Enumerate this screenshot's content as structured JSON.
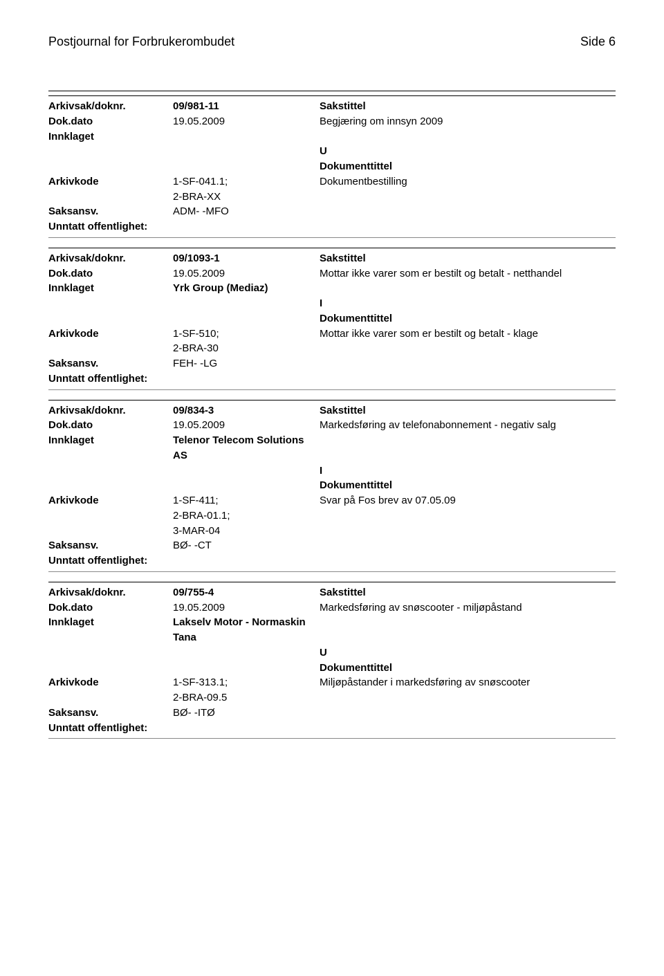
{
  "header": {
    "title": "Postjournal for Forbrukerombudet",
    "page": "Side 6"
  },
  "records": [
    {
      "arkivsak": "09/981-11",
      "dokdato": "19.05.2009",
      "sakstittel": "Begjæring om innsyn 2009",
      "innklaget": "",
      "doktype": "U",
      "arkivkode": [
        "1-SF-041.1;",
        "2-BRA-XX"
      ],
      "dokumenttekst": "Dokumentbestilling",
      "saksansv": "ADM- -MFO",
      "unntatt": ""
    },
    {
      "arkivsak": "09/1093-1",
      "dokdato": "19.05.2009",
      "sakstittel": "Mottar ikke varer som er bestilt og betalt - netthandel",
      "innklaget": "Yrk Group (Mediaz)",
      "doktype": "I",
      "arkivkode": [
        "1-SF-510;",
        "2-BRA-30"
      ],
      "dokumenttekst": "Mottar ikke varer som er bestilt og betalt  - klage",
      "saksansv": "FEH- -LG",
      "unntatt": ""
    },
    {
      "arkivsak": "09/834-3",
      "dokdato": "19.05.2009",
      "sakstittel": "Markedsføring av telefonabonnement - negativ salg",
      "innklaget": "Telenor Telecom Solutions AS",
      "doktype": "I",
      "arkivkode": [
        "1-SF-411;",
        "2-BRA-01.1;",
        "3-MAR-04"
      ],
      "dokumenttekst": "Svar på Fos brev av 07.05.09",
      "saksansv": "BØ- -CT",
      "unntatt": ""
    },
    {
      "arkivsak": "09/755-4",
      "dokdato": "19.05.2009",
      "sakstittel": "Markedsføring av snøscooter - miljøpåstand",
      "innklaget": "Lakselv Motor  - Normaskin Tana",
      "doktype": "U",
      "arkivkode": [
        "1-SF-313.1;",
        "2-BRA-09.5"
      ],
      "dokumenttekst": "Miljøpåstander i markedsføring av snøscooter",
      "saksansv": "BØ- -ITØ",
      "unntatt": ""
    }
  ],
  "labels": {
    "arkivsak": "Arkivsak/doknr.",
    "dokdato": "Dok.dato",
    "innklaget": "Innklaget",
    "arkivkode": "Arkivkode",
    "saksansv": "Saksansv.",
    "unntatt": "Unntatt offentlighet:",
    "sakstittel": "Sakstittel",
    "dokumenttittel": "Dokumenttittel"
  }
}
